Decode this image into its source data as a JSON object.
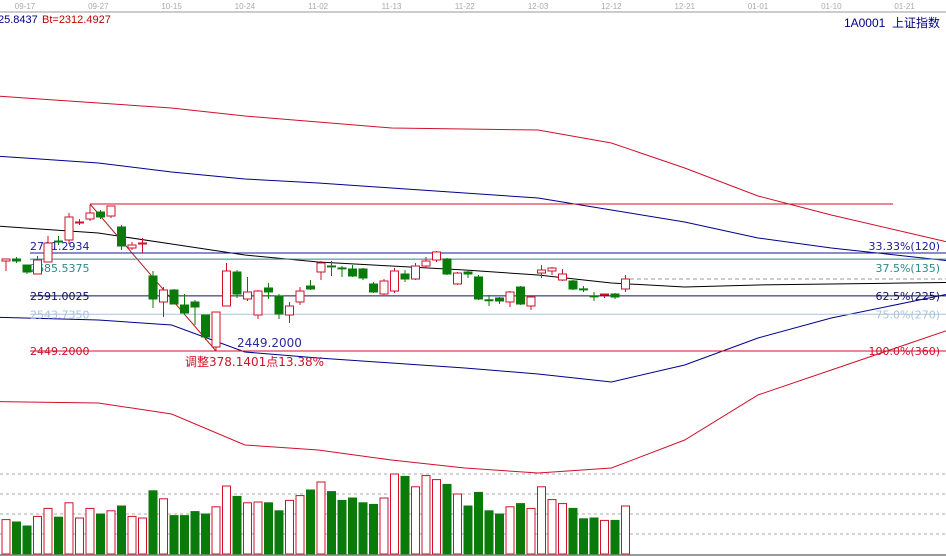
{
  "header": {
    "left_value": "25.8437",
    "bt_value": "Bt=2312.4927",
    "symbol": "1A0001",
    "name": "上证指数"
  },
  "colors": {
    "up": "#d0102a",
    "down": "#0a7a0a",
    "fib_high_line": "#d0102a"
  },
  "chart_data": {
    "type": "candlestick",
    "x_ticks": [
      "09-17",
      "09-27",
      "10-15",
      "10-24",
      "11-02",
      "11-13",
      "11-22",
      "12-03",
      "12-12",
      "12-21",
      "01-01",
      "01-10",
      "01-21"
    ],
    "candles": [
      [
        2680.7,
        2685.9,
        2655.0,
        2685.9
      ],
      [
        2685.9,
        2691.0,
        2675.6,
        2680.7
      ],
      [
        2670.4,
        2670.4,
        2647.3,
        2652.4
      ],
      [
        2647.3,
        2693.6,
        2647.3,
        2683.3
      ],
      [
        2678.1,
        2745.0,
        2678.1,
        2727.0
      ],
      [
        2732.1,
        2745.0,
        2721.9,
        2729.6
      ],
      [
        2734.7,
        2804.2,
        2724.4,
        2793.9
      ],
      [
        2778.4,
        2788.7,
        2773.3,
        2781.0
      ],
      [
        2788.7,
        2824.7,
        2783.6,
        2804.2
      ],
      [
        2806.7,
        2811.9,
        2788.7,
        2793.9
      ],
      [
        2796.4,
        2822.2,
        2791.3,
        2822.2
      ],
      [
        2768.2,
        2773.3,
        2709.0,
        2719.3
      ],
      [
        2714.1,
        2729.6,
        2709.0,
        2721.9
      ],
      [
        2725.0,
        2739.9,
        2701.3,
        2727.0
      ],
      [
        2642.1,
        2655.0,
        2559.8,
        2583.0
      ],
      [
        2575.3,
        2613.8,
        2536.7,
        2606.1
      ],
      [
        2606.1,
        2608.7,
        2570.1,
        2570.1
      ],
      [
        2567.5,
        2595.8,
        2541.8,
        2547.0
      ],
      [
        2575.3,
        2580.4,
        2516.1,
        2562.4
      ],
      [
        2541.8,
        2541.8,
        2477.5,
        2485.2
      ],
      [
        2459.5,
        2549.5,
        2449.2,
        2549.5
      ],
      [
        2565.0,
        2675.6,
        2565.0,
        2655.0
      ],
      [
        2652.4,
        2657.6,
        2585.5,
        2595.8
      ],
      [
        2583.0,
        2639.6,
        2577.8,
        2601.0
      ],
      [
        2541.8,
        2606.1,
        2531.5,
        2603.5
      ],
      [
        2611.3,
        2624.1,
        2583.0,
        2601.0
      ],
      [
        2590.7,
        2595.8,
        2531.5,
        2544.4
      ],
      [
        2541.8,
        2575.3,
        2521.2,
        2565.0
      ],
      [
        2575.3,
        2613.8,
        2567.5,
        2603.5
      ],
      [
        2616.4,
        2631.8,
        2606.1,
        2608.7
      ],
      [
        2652.4,
        2680.7,
        2631.8,
        2675.6
      ],
      [
        2668.0,
        2680.7,
        2642.1,
        2667.8
      ],
      [
        2663.0,
        2667.8,
        2639.6,
        2662.7
      ],
      [
        2660.1,
        2670.4,
        2639.6,
        2642.1
      ],
      [
        2660.1,
        2662.7,
        2631.8,
        2637.0
      ],
      [
        2621.6,
        2626.7,
        2598.4,
        2601.0
      ],
      [
        2595.8,
        2634.4,
        2593.3,
        2629.3
      ],
      [
        2603.5,
        2662.7,
        2598.4,
        2655.0
      ],
      [
        2647.3,
        2657.6,
        2626.7,
        2634.4
      ],
      [
        2634.4,
        2675.6,
        2631.8,
        2667.8
      ],
      [
        2667.8,
        2691.0,
        2665.0,
        2680.7
      ],
      [
        2683.3,
        2706.5,
        2678.1,
        2703.9
      ],
      [
        2685.9,
        2688.5,
        2644.7,
        2647.3
      ],
      [
        2621.6,
        2652.4,
        2619.0,
        2649.8
      ],
      [
        2652.4,
        2655.0,
        2637.0,
        2647.3
      ],
      [
        2639.6,
        2644.7,
        2580.4,
        2583.0
      ],
      [
        2581.0,
        2593.3,
        2565.0,
        2580.4
      ],
      [
        2585.5,
        2588.1,
        2570.1,
        2577.8
      ],
      [
        2575.3,
        2603.5,
        2562.4,
        2601.0
      ],
      [
        2613.8,
        2616.4,
        2567.5,
        2570.1
      ],
      [
        2565.0,
        2590.7,
        2554.7,
        2588.1
      ],
      [
        2649.8,
        2670.4,
        2637.0,
        2657.6
      ],
      [
        2655.0,
        2665.3,
        2644.7,
        2662.7
      ],
      [
        2631.8,
        2660.1,
        2629.3,
        2647.3
      ],
      [
        2629.3,
        2631.8,
        2606.1,
        2608.7
      ],
      [
        2609.0,
        2616.4,
        2601.0,
        2608.7
      ],
      [
        2591.0,
        2601.0,
        2577.8,
        2590.7
      ],
      [
        2593.3,
        2595.8,
        2585.5,
        2595.8
      ],
      [
        2595.8,
        2598.4,
        2583.0,
        2588.1
      ],
      [
        2608.7,
        2644.7,
        2601.0,
        2634.4
      ]
    ],
    "candle_format": [
      "open",
      "high",
      "low",
      "close"
    ],
    "volume_relative": [
      43,
      40,
      35,
      47,
      57,
      46,
      64,
      45,
      57,
      50,
      54,
      60,
      47,
      45,
      79,
      69,
      48,
      48,
      53,
      50,
      59,
      85,
      72,
      64,
      65,
      64,
      54,
      67,
      73,
      80,
      90,
      78,
      67,
      70,
      64,
      62,
      70,
      100,
      97,
      84,
      98,
      93,
      87,
      75,
      60,
      77,
      54,
      50,
      59,
      63,
      57,
      84,
      68,
      63,
      57,
      44,
      45,
      42,
      42,
      60
    ],
    "indicator_lines_at_ticks": [
      {
        "color": "#d0102a",
        "values": [
          3100.0,
          3087.1,
          3074.2,
          3053.6,
          3038.2,
          3022.8,
          3020.2,
          3017.6,
          2984.2,
          2919.9,
          2847.9,
          2799.0,
          2755.3
        ]
      },
      {
        "color": "#00008b",
        "values": [
          2945.6,
          2932.8,
          2909.6,
          2891.6,
          2881.3,
          2868.5,
          2855.6,
          2842.7,
          2811.9,
          2781.0,
          2739.9,
          2714.1,
          2693.6
        ]
      },
      {
        "color": "#000000",
        "values": [
          2765.6,
          2752.7,
          2724.4,
          2696.1,
          2678.1,
          2667.8,
          2657.6,
          2644.7,
          2624.1,
          2613.8,
          2619.0,
          2621.6,
          2624.1
        ]
      },
      {
        "color": "#00008b",
        "values": [
          2534.1,
          2529.0,
          2516.1,
          2446.7,
          2431.2,
          2418.4,
          2405.5,
          2390.1,
          2369.5,
          2413.2,
          2482.7,
          2534.1,
          2572.7
        ]
      },
      {
        "color": "#d0102a",
        "values": [
          2318.1,
          2315.5,
          2287.2,
          2207.5,
          2194.6,
          2168.9,
          2148.3,
          2135.4,
          2148.3,
          2220.3,
          2336.1,
          2400.4,
          2464.7
        ]
      }
    ],
    "fibonacci": {
      "high": 2827.34,
      "levels": [
        {
          "price": 2701.2934,
          "left_label": "2701.2934",
          "right_label": "33.33%(120)",
          "color": "#1a1a9a"
        },
        {
          "price": 2685.5375,
          "left_label": "2685.5375",
          "right_label": "37.5%(135)",
          "color": "#2a8a8a"
        },
        {
          "price": 2591.0025,
          "left_label": "2591.0025",
          "right_label": "62.5%(225)",
          "color": "#101060"
        },
        {
          "price": 2543.735,
          "left_label": "2543.7350",
          "right_label": "75.0%(270)",
          "color": "#a8c4dc"
        },
        {
          "price": 2449.2,
          "left_label": "2449.2000",
          "right_label": "100.0%(360)",
          "color": "#d0102a"
        }
      ],
      "low_marker_label": "2449.2000",
      "adjustment_label": "调整378.1401点13.38%"
    }
  }
}
